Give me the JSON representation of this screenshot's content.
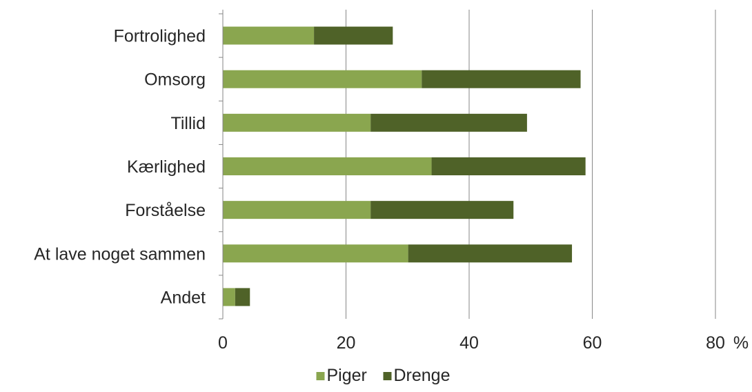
{
  "chart_data": {
    "type": "bar",
    "orientation": "horizontal",
    "stacked": true,
    "categories": [
      "Fortrolighed",
      "Omsorg",
      "Tillid",
      "Kærlighed",
      "Forståelse",
      "At lave noget sammen",
      "Andet"
    ],
    "series": [
      {
        "name": "Piger",
        "color": "#8aa64f",
        "values": [
          14.8,
          32.3,
          24.0,
          33.9,
          24.0,
          30.1,
          2.0
        ]
      },
      {
        "name": "Drenge",
        "color": "#4f6228",
        "values": [
          12.8,
          25.8,
          25.4,
          25.0,
          23.2,
          26.6,
          2.4
        ]
      }
    ],
    "xlim": [
      0,
      80
    ],
    "xticks": [
      "0",
      "20",
      "40",
      "60",
      "80"
    ],
    "x_unit": "%",
    "grid": true,
    "legend": "bottom"
  }
}
